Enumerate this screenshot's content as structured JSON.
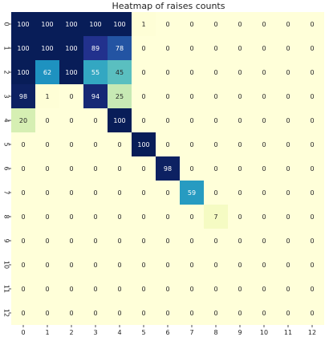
{
  "chart_data": {
    "type": "heatmap",
    "title": "Heatmap of raises counts",
    "xlabel": "",
    "ylabel": "",
    "x_categories": [
      "0",
      "1",
      "2",
      "3",
      "4",
      "5",
      "6",
      "7",
      "8",
      "9",
      "10",
      "11",
      "12"
    ],
    "y_categories": [
      "0",
      "1",
      "2",
      "3",
      "4",
      "5",
      "6",
      "7",
      "8",
      "9",
      "10",
      "11",
      "12"
    ],
    "values": [
      [
        100,
        100,
        100,
        100,
        100,
        1,
        0,
        0,
        0,
        0,
        0,
        0,
        0
      ],
      [
        100,
        100,
        100,
        89,
        78,
        0,
        0,
        0,
        0,
        0,
        0,
        0,
        0
      ],
      [
        100,
        62,
        100,
        55,
        45,
        0,
        0,
        0,
        0,
        0,
        0,
        0,
        0
      ],
      [
        98,
        1,
        0,
        94,
        25,
        0,
        0,
        0,
        0,
        0,
        0,
        0,
        0
      ],
      [
        20,
        0,
        0,
        0,
        100,
        0,
        0,
        0,
        0,
        0,
        0,
        0,
        0
      ],
      [
        0,
        0,
        0,
        0,
        0,
        100,
        0,
        0,
        0,
        0,
        0,
        0,
        0
      ],
      [
        0,
        0,
        0,
        0,
        0,
        0,
        98,
        0,
        0,
        0,
        0,
        0,
        0
      ],
      [
        0,
        0,
        0,
        0,
        0,
        0,
        0,
        59,
        0,
        0,
        0,
        0,
        0
      ],
      [
        0,
        0,
        0,
        0,
        0,
        0,
        0,
        0,
        7,
        0,
        0,
        0,
        0
      ],
      [
        0,
        0,
        0,
        0,
        0,
        0,
        0,
        0,
        0,
        0,
        0,
        0,
        0
      ],
      [
        0,
        0,
        0,
        0,
        0,
        0,
        0,
        0,
        0,
        0,
        0,
        0,
        0
      ],
      [
        0,
        0,
        0,
        0,
        0,
        0,
        0,
        0,
        0,
        0,
        0,
        0,
        0
      ],
      [
        0,
        0,
        0,
        0,
        0,
        0,
        0,
        0,
        0,
        0,
        0,
        0,
        0
      ]
    ],
    "value_range": [
      0,
      100
    ],
    "colormap": "YlGnBu",
    "annotated": true,
    "grid": false,
    "colorbar": false
  }
}
